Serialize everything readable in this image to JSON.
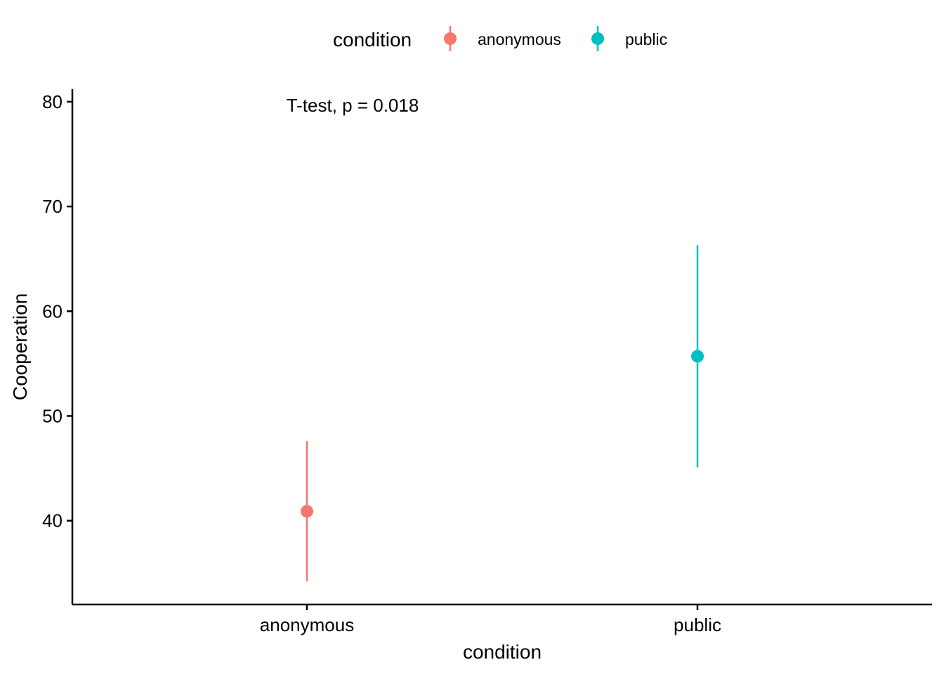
{
  "chart_data": {
    "type": "scatter",
    "xlabel": "condition",
    "ylabel": "Cooperation",
    "categories": [
      "anonymous",
      "public"
    ],
    "ylim": [
      32.0,
      81.2
    ],
    "yticks": [
      40,
      50,
      60,
      70,
      80
    ],
    "series": [
      {
        "name": "anonymous",
        "color": "#F8766D",
        "category": "anonymous",
        "mean": 40.9,
        "lower": 34.2,
        "upper": 47.6
      },
      {
        "name": "public",
        "color": "#00BFC4",
        "category": "public",
        "mean": 55.7,
        "lower": 45.1,
        "upper": 66.3
      }
    ],
    "annotation": "T-test, p = 0.018",
    "legend": {
      "title": "condition",
      "position": "top",
      "items": [
        "anonymous",
        "public"
      ]
    },
    "grid": false
  }
}
